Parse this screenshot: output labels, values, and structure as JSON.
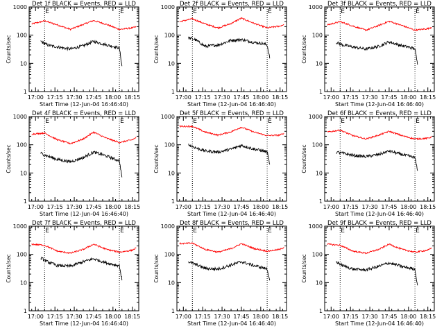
{
  "figure": {
    "ylabel": "Counts/sec",
    "xlabel": "Start Time (12-Jun-04 16:46:40)",
    "xticks": [
      "17:00",
      "17:15",
      "17:30",
      "17:45",
      "18:00",
      "18:15"
    ],
    "yticks": [
      "1",
      "10",
      "100",
      "1000"
    ],
    "marker_label": "E",
    "colors": {
      "events": "#000000",
      "lld": "#ff0000",
      "axes": "#000000"
    }
  },
  "chart_data": [
    {
      "type": "line",
      "title": "Det 1f BLACK = Events, RED = LLD",
      "ylim": [
        1,
        1000
      ],
      "xlim_min": [
        8,
        93
      ],
      "yscale": "log",
      "markers_min": [
        20,
        78
      ],
      "series": [
        {
          "key": "lld",
          "values": [
            {
              "t": 10,
              "v": 250
            },
            {
              "t": 20,
              "v": 320
            },
            {
              "t": 30,
              "v": 230
            },
            {
              "t": 40,
              "v": 160
            },
            {
              "t": 50,
              "v": 240
            },
            {
              "t": 58,
              "v": 330
            },
            {
              "t": 68,
              "v": 240
            },
            {
              "t": 78,
              "v": 160
            },
            {
              "t": 88,
              "v": 180
            },
            {
              "t": 91,
              "v": 200
            }
          ]
        },
        {
          "key": "events",
          "values": [
            {
              "t": 17,
              "v": 60
            },
            {
              "t": 22,
              "v": 45
            },
            {
              "t": 30,
              "v": 38
            },
            {
              "t": 40,
              "v": 32
            },
            {
              "t": 50,
              "v": 42
            },
            {
              "t": 58,
              "v": 60
            },
            {
              "t": 68,
              "v": 45
            },
            {
              "t": 75,
              "v": 38
            },
            {
              "t": 78,
              "v": 35
            },
            {
              "t": 80,
              "v": 8
            }
          ]
        }
      ]
    },
    {
      "type": "line",
      "title": "Det 2f BLACK = Events, RED = LLD",
      "ylim": [
        1,
        1000
      ],
      "xlim_min": [
        8,
        93
      ],
      "yscale": "log",
      "markers_min": [
        20,
        78
      ],
      "series": [
        {
          "key": "lld",
          "values": [
            {
              "t": 10,
              "v": 300
            },
            {
              "t": 20,
              "v": 380
            },
            {
              "t": 30,
              "v": 250
            },
            {
              "t": 40,
              "v": 180
            },
            {
              "t": 50,
              "v": 260
            },
            {
              "t": 58,
              "v": 400
            },
            {
              "t": 68,
              "v": 260
            },
            {
              "t": 78,
              "v": 180
            },
            {
              "t": 88,
              "v": 210
            },
            {
              "t": 91,
              "v": 240
            }
          ]
        },
        {
          "key": "events",
          "values": [
            {
              "t": 17,
              "v": 80
            },
            {
              "t": 22,
              "v": 70
            },
            {
              "t": 30,
              "v": 40
            },
            {
              "t": 40,
              "v": 45
            },
            {
              "t": 50,
              "v": 65
            },
            {
              "t": 58,
              "v": 70
            },
            {
              "t": 68,
              "v": 55
            },
            {
              "t": 75,
              "v": 50
            },
            {
              "t": 78,
              "v": 45
            },
            {
              "t": 80,
              "v": 15
            }
          ]
        }
      ]
    },
    {
      "type": "line",
      "title": "Det 3f BLACK = Events, RED = LLD",
      "ylim": [
        1,
        1000
      ],
      "xlim_min": [
        8,
        93
      ],
      "yscale": "log",
      "markers_min": [
        20,
        78
      ],
      "series": [
        {
          "key": "lld",
          "values": [
            {
              "t": 10,
              "v": 230
            },
            {
              "t": 20,
              "v": 300
            },
            {
              "t": 30,
              "v": 210
            },
            {
              "t": 40,
              "v": 150
            },
            {
              "t": 50,
              "v": 220
            },
            {
              "t": 58,
              "v": 310
            },
            {
              "t": 68,
              "v": 220
            },
            {
              "t": 78,
              "v": 150
            },
            {
              "t": 88,
              "v": 170
            },
            {
              "t": 91,
              "v": 190
            }
          ]
        },
        {
          "key": "events",
          "values": [
            {
              "t": 17,
              "v": 55
            },
            {
              "t": 22,
              "v": 45
            },
            {
              "t": 30,
              "v": 38
            },
            {
              "t": 40,
              "v": 32
            },
            {
              "t": 50,
              "v": 40
            },
            {
              "t": 58,
              "v": 58
            },
            {
              "t": 68,
              "v": 42
            },
            {
              "t": 75,
              "v": 36
            },
            {
              "t": 78,
              "v": 33
            },
            {
              "t": 80,
              "v": 9
            }
          ]
        }
      ]
    },
    {
      "type": "line",
      "title": "Det 4f BLACK = Events, RED = LLD",
      "ylim": [
        1,
        1000
      ],
      "xlim_min": [
        8,
        93
      ],
      "yscale": "log",
      "markers_min": [
        20,
        78
      ],
      "series": [
        {
          "key": "lld",
          "values": [
            {
              "t": 10,
              "v": 240
            },
            {
              "t": 20,
              "v": 260
            },
            {
              "t": 30,
              "v": 150
            },
            {
              "t": 40,
              "v": 110
            },
            {
              "t": 50,
              "v": 160
            },
            {
              "t": 58,
              "v": 280
            },
            {
              "t": 68,
              "v": 170
            },
            {
              "t": 78,
              "v": 120
            },
            {
              "t": 88,
              "v": 150
            },
            {
              "t": 91,
              "v": 180
            }
          ]
        },
        {
          "key": "events",
          "values": [
            {
              "t": 17,
              "v": 50
            },
            {
              "t": 22,
              "v": 40
            },
            {
              "t": 30,
              "v": 30
            },
            {
              "t": 40,
              "v": 25
            },
            {
              "t": 50,
              "v": 35
            },
            {
              "t": 58,
              "v": 55
            },
            {
              "t": 68,
              "v": 40
            },
            {
              "t": 75,
              "v": 30
            },
            {
              "t": 78,
              "v": 28
            },
            {
              "t": 80,
              "v": 7
            }
          ]
        }
      ]
    },
    {
      "type": "line",
      "title": "Det 5f BLACK = Events, RED = LLD",
      "ylim": [
        1,
        1000
      ],
      "xlim_min": [
        8,
        93
      ],
      "yscale": "log",
      "markers_min": [
        20,
        78
      ],
      "series": [
        {
          "key": "lld",
          "values": [
            {
              "t": 10,
              "v": 450
            },
            {
              "t": 20,
              "v": 450
            },
            {
              "t": 30,
              "v": 280
            },
            {
              "t": 40,
              "v": 220
            },
            {
              "t": 50,
              "v": 290
            },
            {
              "t": 58,
              "v": 420
            },
            {
              "t": 68,
              "v": 280
            },
            {
              "t": 78,
              "v": 210
            },
            {
              "t": 88,
              "v": 220
            },
            {
              "t": 91,
              "v": 260
            }
          ]
        },
        {
          "key": "events",
          "values": [
            {
              "t": 17,
              "v": 100
            },
            {
              "t": 22,
              "v": 80
            },
            {
              "t": 30,
              "v": 60
            },
            {
              "t": 40,
              "v": 55
            },
            {
              "t": 50,
              "v": 70
            },
            {
              "t": 58,
              "v": 95
            },
            {
              "t": 68,
              "v": 70
            },
            {
              "t": 75,
              "v": 60
            },
            {
              "t": 78,
              "v": 55
            },
            {
              "t": 80,
              "v": 20
            }
          ]
        }
      ]
    },
    {
      "type": "line",
      "title": "Det 6f BLACK = Events, RED = LLD",
      "ylim": [
        1,
        1000
      ],
      "xlim_min": [
        8,
        93
      ],
      "yscale": "log",
      "markers_min": [
        20,
        78
      ],
      "series": [
        {
          "key": "lld",
          "values": [
            {
              "t": 10,
              "v": 280
            },
            {
              "t": 20,
              "v": 330
            },
            {
              "t": 30,
              "v": 210
            },
            {
              "t": 40,
              "v": 160
            },
            {
              "t": 50,
              "v": 220
            },
            {
              "t": 58,
              "v": 300
            },
            {
              "t": 68,
              "v": 210
            },
            {
              "t": 78,
              "v": 160
            },
            {
              "t": 88,
              "v": 170
            },
            {
              "t": 91,
              "v": 190
            }
          ]
        },
        {
          "key": "events",
          "values": [
            {
              "t": 17,
              "v": 55
            },
            {
              "t": 22,
              "v": 50
            },
            {
              "t": 30,
              "v": 42
            },
            {
              "t": 40,
              "v": 38
            },
            {
              "t": 50,
              "v": 45
            },
            {
              "t": 58,
              "v": 60
            },
            {
              "t": 68,
              "v": 45
            },
            {
              "t": 75,
              "v": 38
            },
            {
              "t": 78,
              "v": 35
            },
            {
              "t": 80,
              "v": 12
            }
          ]
        }
      ]
    },
    {
      "type": "line",
      "title": "Det 7f BLACK = Events, RED = LLD",
      "ylim": [
        1,
        1000
      ],
      "xlim_min": [
        8,
        93
      ],
      "yscale": "log",
      "markers_min": [
        20,
        78
      ],
      "series": [
        {
          "key": "lld",
          "values": [
            {
              "t": 10,
              "v": 230
            },
            {
              "t": 20,
              "v": 210
            },
            {
              "t": 30,
              "v": 130
            },
            {
              "t": 40,
              "v": 110
            },
            {
              "t": 50,
              "v": 150
            },
            {
              "t": 58,
              "v": 230
            },
            {
              "t": 68,
              "v": 150
            },
            {
              "t": 78,
              "v": 120
            },
            {
              "t": 88,
              "v": 140
            },
            {
              "t": 91,
              "v": 170
            }
          ]
        },
        {
          "key": "events",
          "values": [
            {
              "t": 17,
              "v": 75
            },
            {
              "t": 22,
              "v": 55
            },
            {
              "t": 30,
              "v": 40
            },
            {
              "t": 40,
              "v": 38
            },
            {
              "t": 50,
              "v": 55
            },
            {
              "t": 58,
              "v": 70
            },
            {
              "t": 68,
              "v": 50
            },
            {
              "t": 75,
              "v": 42
            },
            {
              "t": 78,
              "v": 40
            },
            {
              "t": 80,
              "v": 12
            }
          ]
        }
      ]
    },
    {
      "type": "line",
      "title": "Det 8f BLACK = Events, RED = LLD",
      "ylim": [
        1,
        1000
      ],
      "xlim_min": [
        8,
        93
      ],
      "yscale": "log",
      "markers_min": [
        20,
        78
      ],
      "series": [
        {
          "key": "lld",
          "values": [
            {
              "t": 10,
              "v": 240
            },
            {
              "t": 20,
              "v": 250
            },
            {
              "t": 30,
              "v": 150
            },
            {
              "t": 40,
              "v": 120
            },
            {
              "t": 50,
              "v": 160
            },
            {
              "t": 58,
              "v": 240
            },
            {
              "t": 68,
              "v": 160
            },
            {
              "t": 78,
              "v": 130
            },
            {
              "t": 88,
              "v": 150
            },
            {
              "t": 91,
              "v": 180
            }
          ]
        },
        {
          "key": "events",
          "values": [
            {
              "t": 17,
              "v": 55
            },
            {
              "t": 22,
              "v": 45
            },
            {
              "t": 30,
              "v": 32
            },
            {
              "t": 40,
              "v": 30
            },
            {
              "t": 50,
              "v": 42
            },
            {
              "t": 58,
              "v": 55
            },
            {
              "t": 68,
              "v": 40
            },
            {
              "t": 75,
              "v": 33
            },
            {
              "t": 78,
              "v": 30
            },
            {
              "t": 80,
              "v": 12
            }
          ]
        }
      ]
    },
    {
      "type": "line",
      "title": "Det 9f BLACK = Events, RED = LLD",
      "ylim": [
        1,
        1000
      ],
      "xlim_min": [
        8,
        93
      ],
      "yscale": "log",
      "markers_min": [
        20,
        78
      ],
      "series": [
        {
          "key": "lld",
          "values": [
            {
              "t": 10,
              "v": 230
            },
            {
              "t": 20,
              "v": 210
            },
            {
              "t": 30,
              "v": 130
            },
            {
              "t": 40,
              "v": 110
            },
            {
              "t": 50,
              "v": 150
            },
            {
              "t": 58,
              "v": 230
            },
            {
              "t": 68,
              "v": 150
            },
            {
              "t": 78,
              "v": 120
            },
            {
              "t": 88,
              "v": 140
            },
            {
              "t": 91,
              "v": 170
            }
          ]
        },
        {
          "key": "events",
          "values": [
            {
              "t": 17,
              "v": 55
            },
            {
              "t": 22,
              "v": 40
            },
            {
              "t": 30,
              "v": 30
            },
            {
              "t": 40,
              "v": 28
            },
            {
              "t": 50,
              "v": 38
            },
            {
              "t": 58,
              "v": 50
            },
            {
              "t": 68,
              "v": 37
            },
            {
              "t": 75,
              "v": 32
            },
            {
              "t": 78,
              "v": 30
            },
            {
              "t": 80,
              "v": 8
            }
          ]
        }
      ]
    }
  ]
}
